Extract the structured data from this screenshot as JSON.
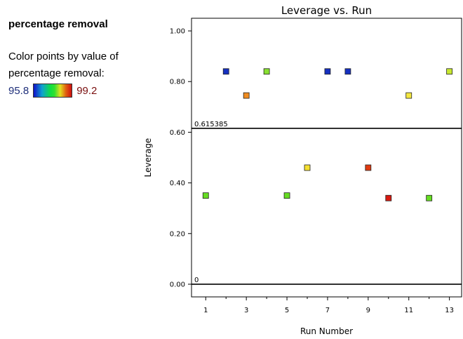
{
  "sidebar": {
    "response_title": "percentage removal",
    "color_caption": "Color points by value of percentage removal:",
    "legend_min": "95.8",
    "legend_max": "99.2"
  },
  "chart_data": {
    "type": "scatter",
    "title": "Leverage vs. Run",
    "xlabel": "Run Number",
    "ylabel": "Leverage",
    "xlim": [
      0.3,
      13.6
    ],
    "ylim": [
      -0.05,
      1.05
    ],
    "x_ticks": [
      1,
      3,
      5,
      7,
      9,
      11,
      13
    ],
    "y_ticks": [
      0.0,
      0.2,
      0.4,
      0.6,
      0.8,
      1.0
    ],
    "y_tick_labels": [
      "0.00",
      "0.20",
      "0.40",
      "0.60",
      "0.80",
      "1.00"
    ],
    "reference_lines": [
      {
        "value": 0.615385,
        "label": "0.615385"
      },
      {
        "value": 0.0,
        "label": "0"
      }
    ],
    "points": [
      {
        "x": 1,
        "y": 0.35,
        "color": "#66dd22"
      },
      {
        "x": 2,
        "y": 0.84,
        "color": "#1530c0"
      },
      {
        "x": 3,
        "y": 0.745,
        "color": "#f08c20"
      },
      {
        "x": 4,
        "y": 0.84,
        "color": "#88e030"
      },
      {
        "x": 5,
        "y": 0.35,
        "color": "#66dd22"
      },
      {
        "x": 6,
        "y": 0.46,
        "color": "#f5e030"
      },
      {
        "x": 7,
        "y": 0.84,
        "color": "#1530c0"
      },
      {
        "x": 8,
        "y": 0.84,
        "color": "#1530c0"
      },
      {
        "x": 9,
        "y": 0.46,
        "color": "#e03a10"
      },
      {
        "x": 10,
        "y": 0.34,
        "color": "#d81a10"
      },
      {
        "x": 11,
        "y": 0.745,
        "color": "#f5e840"
      },
      {
        "x": 12,
        "y": 0.34,
        "color": "#66dd22"
      },
      {
        "x": 13,
        "y": 0.84,
        "color": "#c8e830"
      }
    ]
  }
}
